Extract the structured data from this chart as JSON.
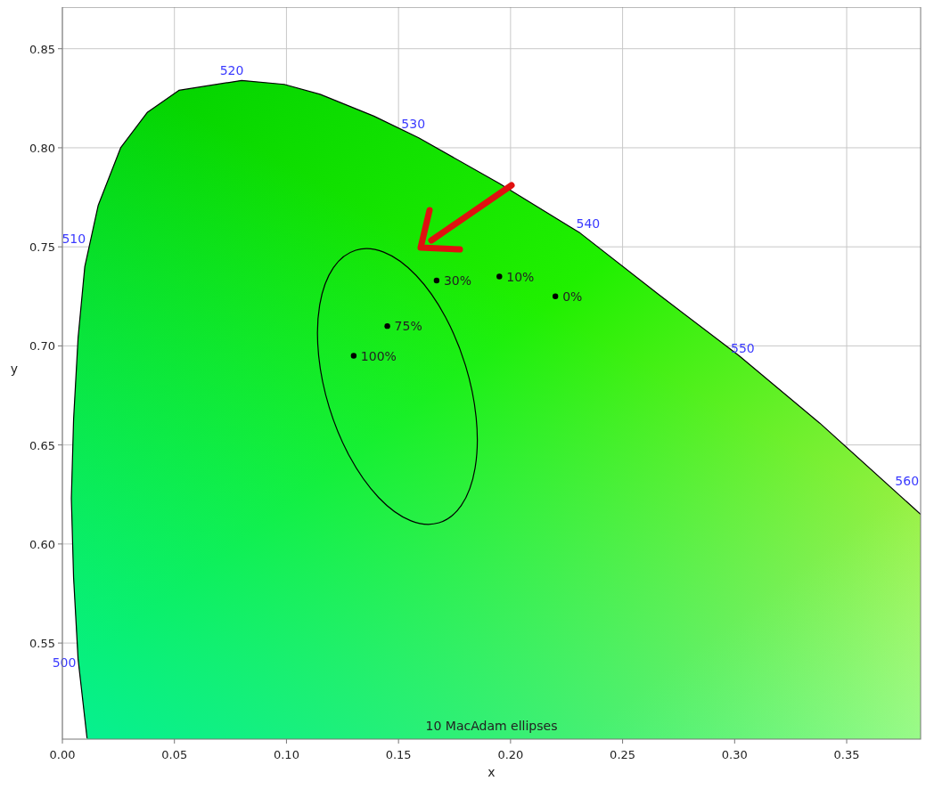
{
  "chart_data": {
    "type": "scatter",
    "xlabel": "x",
    "ylabel": "y",
    "xlim": [
      0,
      0.383
    ],
    "ylim": [
      0.5015,
      0.871
    ],
    "xticks": [
      {
        "value": 0,
        "label": "0.00"
      },
      {
        "value": 0.05,
        "label": "0.05"
      },
      {
        "value": 0.1,
        "label": "0.10"
      },
      {
        "value": 0.15,
        "label": "0.15"
      },
      {
        "value": 0.2,
        "label": "0.20"
      },
      {
        "value": 0.25,
        "label": "0.25"
      },
      {
        "value": 0.3,
        "label": "0.30"
      },
      {
        "value": 0.35,
        "label": "0.35"
      }
    ],
    "yticks": [
      {
        "value": 0.55,
        "label": "0.55"
      },
      {
        "value": 0.6,
        "label": "0.60"
      },
      {
        "value": 0.65,
        "label": "0.65"
      },
      {
        "value": 0.7,
        "label": "0.70"
      },
      {
        "value": 0.75,
        "label": "0.75"
      },
      {
        "value": 0.8,
        "label": "0.80"
      },
      {
        "value": 0.85,
        "label": "0.85"
      }
    ],
    "grid": true,
    "series": [
      {
        "type": "area",
        "color": "#20f000",
        "x": [
          0.011,
          0.007,
          0.005,
          0.004,
          0.005,
          0.007,
          0.01,
          0.016,
          0.026,
          0.038,
          0.052,
          0.08,
          0.099,
          0.115,
          0.139,
          0.159,
          0.195,
          0.231,
          0.266,
          0.302,
          0.338,
          0.383
        ],
        "values": [
          0.502,
          0.542,
          0.583,
          0.623,
          0.663,
          0.704,
          0.74,
          0.771,
          0.8,
          0.818,
          0.829,
          0.834,
          0.832,
          0.827,
          0.816,
          0.805,
          0.782,
          0.757,
          0.726,
          0.695,
          0.661,
          0.615
        ]
      },
      {
        "color": "#000000",
        "x": [
          0.22,
          0.195,
          0.167,
          0.145,
          0.13
        ],
        "values": [
          0.725,
          0.735,
          0.733,
          0.71,
          0.695
        ]
      }
    ],
    "annotations": [
      {
        "text": "0%",
        "x": 0.22,
        "y": 0.725
      },
      {
        "text": "10%",
        "x": 0.195,
        "y": 0.735
      },
      {
        "text": "30%",
        "x": 0.167,
        "y": 0.733
      },
      {
        "text": "75%",
        "x": 0.145,
        "y": 0.71
      },
      {
        "text": "100%",
        "x": 0.13,
        "y": 0.695
      },
      {
        "text": "500",
        "x": 0.0077,
        "y": 0.535
      },
      {
        "text": "510",
        "x": 0.012,
        "y": 0.749
      },
      {
        "text": "520",
        "x": 0.074,
        "y": 0.834
      },
      {
        "text": "530",
        "x": 0.155,
        "y": 0.807
      },
      {
        "text": "540",
        "x": 0.233,
        "y": 0.757
      },
      {
        "text": "550",
        "x": 0.302,
        "y": 0.694
      },
      {
        "text": "560",
        "x": 0.37,
        "y": 0.627
      },
      "10  MacAdam ellipses"
    ]
  }
}
